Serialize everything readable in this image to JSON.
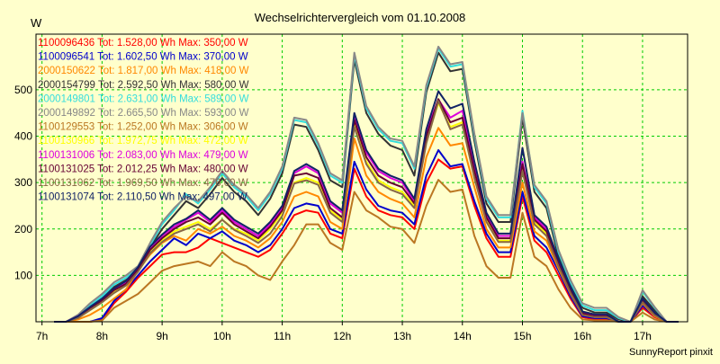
{
  "chart_data": {
    "type": "line",
    "title": "Wechselrichtervergleich vom 01.10.2008",
    "ylabel": "W",
    "xlabel": "",
    "footer": "SunnyReport pinxit",
    "xlim": [
      6.9,
      17.75
    ],
    "ylim": [
      0,
      620
    ],
    "yticks": [
      100,
      200,
      300,
      400,
      500
    ],
    "xticks": [
      {
        "value": 7,
        "label": "7h"
      },
      {
        "value": 8,
        "label": "8h"
      },
      {
        "value": 9,
        "label": "9h"
      },
      {
        "value": 10,
        "label": "10h"
      },
      {
        "value": 11,
        "label": "11h"
      },
      {
        "value": 12,
        "label": "12h"
      },
      {
        "value": 13,
        "label": "13h"
      },
      {
        "value": 14,
        "label": "14h"
      },
      {
        "value": 15,
        "label": "15h"
      },
      {
        "value": 16,
        "label": "16h"
      },
      {
        "value": 17,
        "label": "17h"
      }
    ],
    "grid": true,
    "legend_position": "top-left",
    "x": [
      7.2,
      7.4,
      7.6,
      7.8,
      8.0,
      8.2,
      8.4,
      8.6,
      8.8,
      9.0,
      9.2,
      9.4,
      9.6,
      9.8,
      10.0,
      10.2,
      10.4,
      10.6,
      10.8,
      11.0,
      11.2,
      11.4,
      11.6,
      11.8,
      12.0,
      12.2,
      12.4,
      12.6,
      12.8,
      13.0,
      13.2,
      13.4,
      13.6,
      13.8,
      14.0,
      14.2,
      14.4,
      14.6,
      14.8,
      15.0,
      15.2,
      15.4,
      15.6,
      15.8,
      16.0,
      16.2,
      16.4,
      16.6,
      16.8,
      17.0,
      17.2,
      17.4,
      17.6
    ],
    "series": [
      {
        "name": "1100096436",
        "legend": "1100096436 Tot: 1.528,00 Wh Max: 350,00 W",
        "color": "#ff0000",
        "values": [
          0,
          0,
          0,
          0,
          5,
          40,
          65,
          95,
          120,
          145,
          150,
          150,
          160,
          180,
          170,
          160,
          150,
          140,
          155,
          190,
          230,
          240,
          235,
          190,
          180,
          330,
          270,
          240,
          230,
          225,
          200,
          300,
          350,
          330,
          335,
          250,
          180,
          140,
          140,
          270,
          175,
          150,
          100,
          50,
          10,
          5,
          5,
          0,
          0,
          30,
          10,
          0,
          0
        ]
      },
      {
        "name": "1100096541",
        "legend": "1100096541 Tot: 1.602,50 Wh Max: 370,00 W",
        "color": "#0000cc",
        "values": [
          0,
          0,
          0,
          0,
          8,
          45,
          70,
          100,
          130,
          155,
          180,
          165,
          190,
          180,
          195,
          175,
          165,
          150,
          165,
          200,
          245,
          255,
          250,
          200,
          190,
          345,
          285,
          250,
          240,
          235,
          210,
          315,
          370,
          335,
          340,
          260,
          190,
          150,
          150,
          280,
          185,
          160,
          110,
          55,
          12,
          8,
          8,
          0,
          0,
          35,
          12,
          0,
          0
        ]
      },
      {
        "name": "2000150622",
        "legend": "2000150622 Tot: 1.817,00 Wh Max: 418,00 W",
        "color": "#ff8800",
        "values": [
          0,
          0,
          5,
          15,
          30,
          50,
          70,
          110,
          145,
          170,
          185,
          175,
          200,
          190,
          205,
          185,
          175,
          160,
          180,
          215,
          270,
          280,
          270,
          215,
          200,
          395,
          315,
          280,
          265,
          255,
          225,
          355,
          418,
          380,
          385,
          290,
          200,
          160,
          160,
          300,
          195,
          175,
          115,
          60,
          15,
          10,
          10,
          0,
          0,
          40,
          12,
          0,
          0
        ]
      },
      {
        "name": "2000154799",
        "legend": "2000154799 Tot: 2.592,50 Wh Max: 580,00 W",
        "color": "#333333",
        "values": [
          0,
          0,
          10,
          30,
          50,
          75,
          90,
          110,
          160,
          200,
          230,
          260,
          245,
          275,
          310,
          280,
          260,
          230,
          265,
          320,
          425,
          420,
          370,
          305,
          290,
          565,
          450,
          405,
          380,
          370,
          315,
          495,
          580,
          540,
          545,
          390,
          255,
          215,
          215,
          440,
          280,
          245,
          140,
          80,
          30,
          20,
          20,
          5,
          0,
          55,
          25,
          0,
          0
        ]
      },
      {
        "name": "2000149801",
        "legend": "2000149801 Tot: 2.631,00 Wh Max: 589,00 W",
        "color": "#33dddd",
        "values": [
          0,
          0,
          12,
          35,
          55,
          80,
          95,
          115,
          165,
          210,
          240,
          275,
          255,
          285,
          320,
          290,
          270,
          240,
          275,
          330,
          435,
          430,
          380,
          315,
          300,
          575,
          460,
          415,
          390,
          385,
          330,
          505,
          589,
          550,
          555,
          400,
          265,
          225,
          225,
          455,
          290,
          255,
          150,
          85,
          35,
          25,
          25,
          8,
          0,
          65,
          30,
          0,
          0
        ]
      },
      {
        "name": "2000149892",
        "legend": "2000149892 Tot: 2.665,50 Wh Max: 593,00 W",
        "color": "#888888",
        "values": [
          0,
          0,
          15,
          40,
          60,
          85,
          100,
          120,
          170,
          215,
          245,
          270,
          260,
          290,
          325,
          295,
          275,
          245,
          280,
          335,
          440,
          435,
          385,
          320,
          305,
          580,
          465,
          420,
          395,
          390,
          335,
          510,
          593,
          555,
          560,
          405,
          270,
          230,
          230,
          450,
          295,
          260,
          155,
          90,
          40,
          30,
          30,
          10,
          0,
          68,
          32,
          0,
          0
        ]
      },
      {
        "name": "1100129553",
        "legend": "1100129553 Tot: 1.252,00 Wh Max: 306,00 W",
        "color": "#bb7722",
        "values": [
          0,
          0,
          0,
          0,
          3,
          30,
          45,
          60,
          85,
          110,
          120,
          125,
          130,
          120,
          150,
          130,
          120,
          100,
          90,
          130,
          165,
          210,
          210,
          170,
          155,
          280,
          240,
          225,
          205,
          200,
          170,
          250,
          306,
          280,
          285,
          185,
          120,
          95,
          95,
          235,
          140,
          120,
          70,
          30,
          5,
          3,
          3,
          0,
          0,
          20,
          5,
          0,
          0
        ]
      },
      {
        "name": "1100130966",
        "legend": "1100130966 Tot: 1.972,75 Wh Max: 472,00 W",
        "color": "#ffff00",
        "values": [
          0,
          0,
          10,
          28,
          45,
          65,
          80,
          110,
          150,
          175,
          195,
          205,
          215,
          200,
          220,
          200,
          190,
          175,
          200,
          235,
          300,
          310,
          300,
          240,
          220,
          430,
          345,
          305,
          290,
          280,
          250,
          390,
          472,
          420,
          430,
          320,
          220,
          175,
          175,
          330,
          215,
          190,
          125,
          65,
          18,
          12,
          12,
          0,
          0,
          45,
          15,
          0,
          0
        ]
      },
      {
        "name": "1100131006",
        "legend": "1100131006 Tot: 2.083,00 Wh Max: 479,00 W",
        "color": "#dd00dd",
        "values": [
          0,
          0,
          12,
          30,
          48,
          70,
          85,
          115,
          160,
          185,
          205,
          220,
          235,
          215,
          240,
          215,
          200,
          185,
          210,
          245,
          320,
          335,
          320,
          255,
          235,
          445,
          365,
          325,
          310,
          300,
          260,
          410,
          479,
          440,
          455,
          335,
          230,
          185,
          185,
          345,
          225,
          200,
          130,
          70,
          20,
          15,
          15,
          0,
          0,
          48,
          18,
          0,
          0
        ]
      },
      {
        "name": "1100131025",
        "legend": "1100131025 Tot: 2.012,25 Wh Max: 480,00 W",
        "color": "#660033",
        "values": [
          0,
          0,
          10,
          30,
          46,
          68,
          82,
          112,
          155,
          180,
          200,
          215,
          225,
          210,
          235,
          210,
          195,
          180,
          205,
          240,
          315,
          320,
          310,
          245,
          225,
          435,
          355,
          315,
          300,
          290,
          255,
          400,
          480,
          430,
          440,
          325,
          225,
          180,
          180,
          340,
          220,
          195,
          125,
          68,
          18,
          12,
          12,
          0,
          0,
          46,
          16,
          0,
          0
        ]
      },
      {
        "name": "1100131062",
        "legend": "1100131062 Tot: 1.969,50 Wh Max: 476,00 W",
        "color": "#886644",
        "values": [
          0,
          0,
          8,
          25,
          42,
          62,
          78,
          108,
          148,
          172,
          190,
          200,
          210,
          195,
          220,
          198,
          185,
          170,
          190,
          228,
          298,
          305,
          295,
          235,
          215,
          420,
          340,
          300,
          285,
          275,
          245,
          385,
          476,
          415,
          425,
          310,
          215,
          172,
          172,
          325,
          210,
          185,
          120,
          62,
          15,
          10,
          10,
          0,
          0,
          42,
          14,
          0,
          0
        ]
      },
      {
        "name": "1100131074",
        "legend": "1100131074 Tot: 2.110,50 Wh Max: 497,00 W",
        "color": "#112266",
        "values": [
          0,
          0,
          12,
          32,
          50,
          72,
          88,
          118,
          162,
          188,
          210,
          222,
          240,
          220,
          245,
          220,
          205,
          190,
          215,
          250,
          325,
          340,
          325,
          260,
          240,
          450,
          370,
          330,
          315,
          305,
          265,
          415,
          497,
          460,
          470,
          345,
          235,
          190,
          190,
          375,
          230,
          205,
          135,
          75,
          22,
          16,
          16,
          0,
          0,
          50,
          20,
          0,
          0
        ]
      }
    ]
  }
}
